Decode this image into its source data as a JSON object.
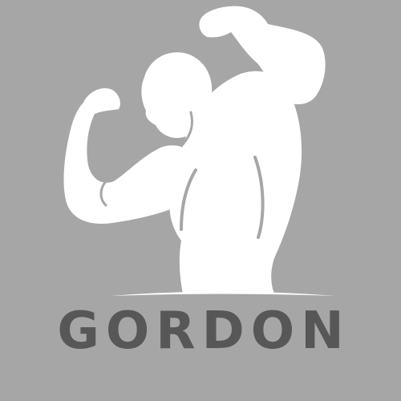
{
  "brand": {
    "name": "GORDON"
  },
  "emblem": {
    "icon": "bodybuilder-flexing-icon"
  },
  "colors": {
    "background": "#a6a6a6",
    "figure": "#ffffff",
    "text": "#575757"
  }
}
